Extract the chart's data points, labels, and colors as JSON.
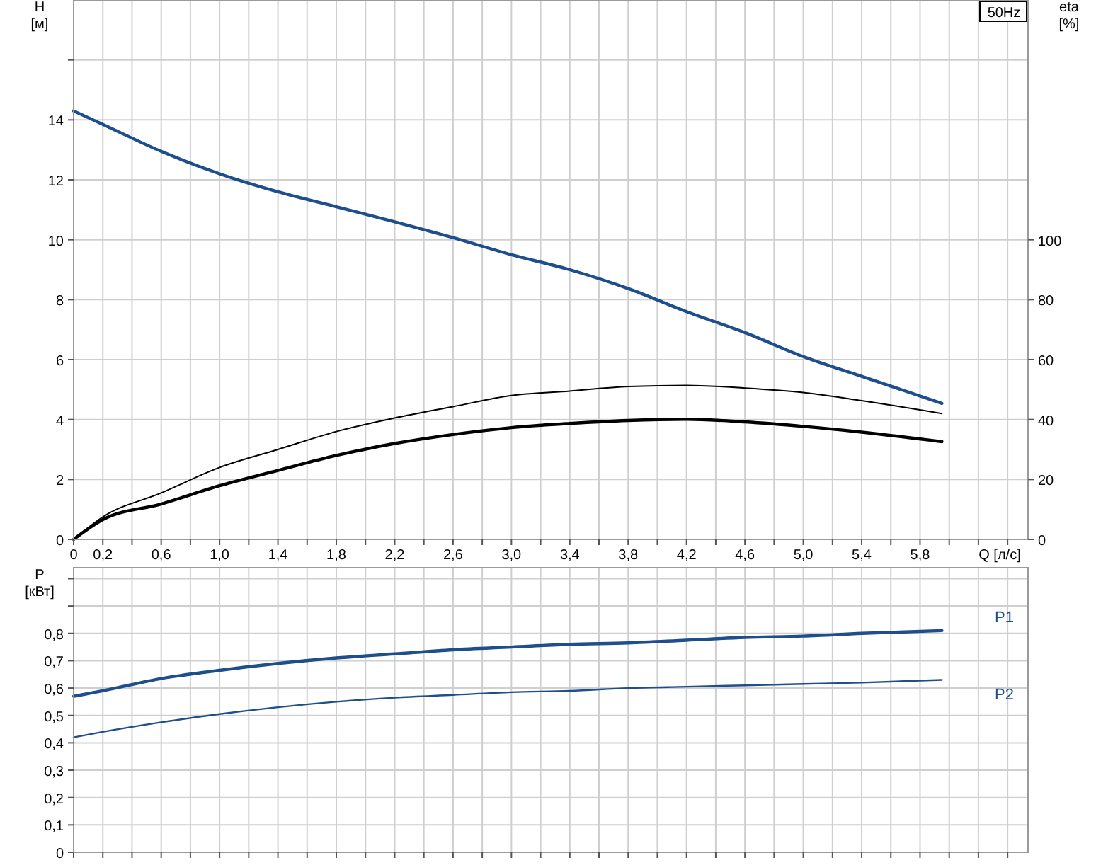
{
  "chart_data": [
    {
      "type": "line",
      "xlabel": "Q [л/с]",
      "ylabel": "H [м]",
      "y2label": "eta [%]",
      "annotations": [
        "50Hz"
      ],
      "xlim": [
        0,
        6.54
      ],
      "xticks": [
        0,
        {
          "value": 0.2,
          "label": "0,2"
        },
        {
          "value": 0.4,
          "label": null
        },
        {
          "value": 0.6,
          "label": "0,6"
        },
        {
          "value": 0.8,
          "label": null
        },
        {
          "value": 1.0,
          "label": "1,0"
        },
        {
          "value": 1.2,
          "label": null
        },
        {
          "value": 1.4,
          "label": "1,4"
        },
        {
          "value": 1.6,
          "label": null
        },
        {
          "value": 1.8,
          "label": "1,8"
        },
        {
          "value": 2.0,
          "label": null
        },
        {
          "value": 2.2,
          "label": "2,2"
        },
        {
          "value": 2.4,
          "label": null
        },
        {
          "value": 2.6,
          "label": "2,6"
        },
        {
          "value": 2.8,
          "label": null
        },
        {
          "value": 3.0,
          "label": "3,0"
        },
        {
          "value": 3.2,
          "label": null
        },
        {
          "value": 3.4,
          "label": "3,4"
        },
        {
          "value": 3.6,
          "label": null
        },
        {
          "value": 3.8,
          "label": "3,8"
        },
        {
          "value": 4.0,
          "label": null
        },
        {
          "value": 4.2,
          "label": "4,2"
        },
        {
          "value": 4.4,
          "label": null
        },
        {
          "value": 4.6,
          "label": "4,6"
        },
        {
          "value": 4.8,
          "label": null
        },
        {
          "value": 5.0,
          "label": "5,0"
        },
        {
          "value": 5.2,
          "label": null
        },
        {
          "value": 5.4,
          "label": "5,4"
        },
        {
          "value": 5.6,
          "label": null
        },
        {
          "value": 5.8,
          "label": "5,8"
        },
        {
          "value": 6.0,
          "label": null
        },
        {
          "value": 6.2,
          "label": null
        },
        {
          "value": 6.4,
          "label": null
        }
      ],
      "ylim": [
        0,
        18
      ],
      "yticks": [
        0,
        2,
        4,
        6,
        8,
        10,
        12,
        14,
        {
          "value": 16,
          "label": null
        }
      ],
      "y2lim": [
        0,
        180
      ],
      "y2ticks": [
        0,
        20,
        40,
        60,
        80,
        100
      ],
      "grid": true,
      "marker": "none",
      "line_style": "solid",
      "x": [
        0,
        0.2,
        0.6,
        1.0,
        1.4,
        1.8,
        2.2,
        2.6,
        3.0,
        3.4,
        3.8,
        4.2,
        4.6,
        5.0,
        5.4,
        5.95
      ],
      "series": [
        {
          "color": "#1f4e8c",
          "values": [
            14.3,
            13.85,
            12.95,
            12.2,
            11.6,
            11.1,
            10.6,
            10.07,
            9.5,
            9.0,
            8.37,
            7.6,
            6.9,
            6.1,
            5.44,
            4.54
          ]
        },
        {
          "color": "#000000",
          "axis": "y2",
          "values": [
            0,
            7.5,
            15.5,
            24,
            30,
            36,
            40.5,
            44.3,
            48,
            49.5,
            51,
            51.4,
            50.5,
            49,
            46.3,
            42
          ]
        },
        {
          "color": "#000000",
          "axis": "y2",
          "values": [
            0,
            6.6,
            11.8,
            17.9,
            23,
            28,
            32,
            35,
            37.3,
            38.7,
            39.7,
            40.1,
            39.2,
            37.7,
            35.8,
            32.6
          ]
        }
      ]
    },
    {
      "type": "line",
      "ylabel": "P [кВт]",
      "tick_labels": "y",
      "xlim": [
        0,
        6.54
      ],
      "xticks": [
        0,
        0.2,
        0.4,
        0.6,
        0.8,
        1.0,
        1.2,
        1.4,
        1.6,
        1.8,
        2.0,
        2.2,
        2.4,
        2.6,
        2.8,
        3.0,
        3.2,
        3.4,
        3.6,
        3.8,
        4.0,
        4.2,
        4.4,
        4.6,
        4.8,
        5.0,
        5.2,
        5.4,
        5.6,
        5.8,
        6.0,
        6.2,
        6.4
      ],
      "ylim": [
        0,
        1.04
      ],
      "yticks": [
        0,
        {
          "value": 0.1,
          "label": "0,1"
        },
        {
          "value": 0.2,
          "label": "0,2"
        },
        {
          "value": 0.3,
          "label": "0,3"
        },
        {
          "value": 0.4,
          "label": "0,4"
        },
        {
          "value": 0.5,
          "label": "0,5"
        },
        {
          "value": 0.6,
          "label": "0,6"
        },
        {
          "value": 0.7,
          "label": "0,7"
        },
        {
          "value": 0.8,
          "label": "0,8"
        },
        {
          "value": 0.9,
          "label": null
        },
        {
          "value": 1.0,
          "label": null
        }
      ],
      "grid": true,
      "marker": "none",
      "line_style": "solid",
      "x": [
        0,
        0.2,
        0.6,
        1.0,
        1.4,
        1.8,
        2.2,
        2.6,
        3.0,
        3.4,
        3.8,
        4.2,
        4.6,
        5.0,
        5.4,
        5.95
      ],
      "series": [
        {
          "name": "P1",
          "color": "#1f4e8c",
          "values": [
            0.57,
            0.59,
            0.635,
            0.665,
            0.69,
            0.71,
            0.725,
            0.74,
            0.75,
            0.76,
            0.765,
            0.775,
            0.785,
            0.79,
            0.8,
            0.81
          ]
        },
        {
          "name": "P2",
          "color": "#1f4e8c",
          "values": [
            0.42,
            0.44,
            0.475,
            0.505,
            0.53,
            0.55,
            0.565,
            0.575,
            0.585,
            0.59,
            0.6,
            0.605,
            0.61,
            0.615,
            0.62,
            0.63
          ]
        }
      ]
    }
  ]
}
